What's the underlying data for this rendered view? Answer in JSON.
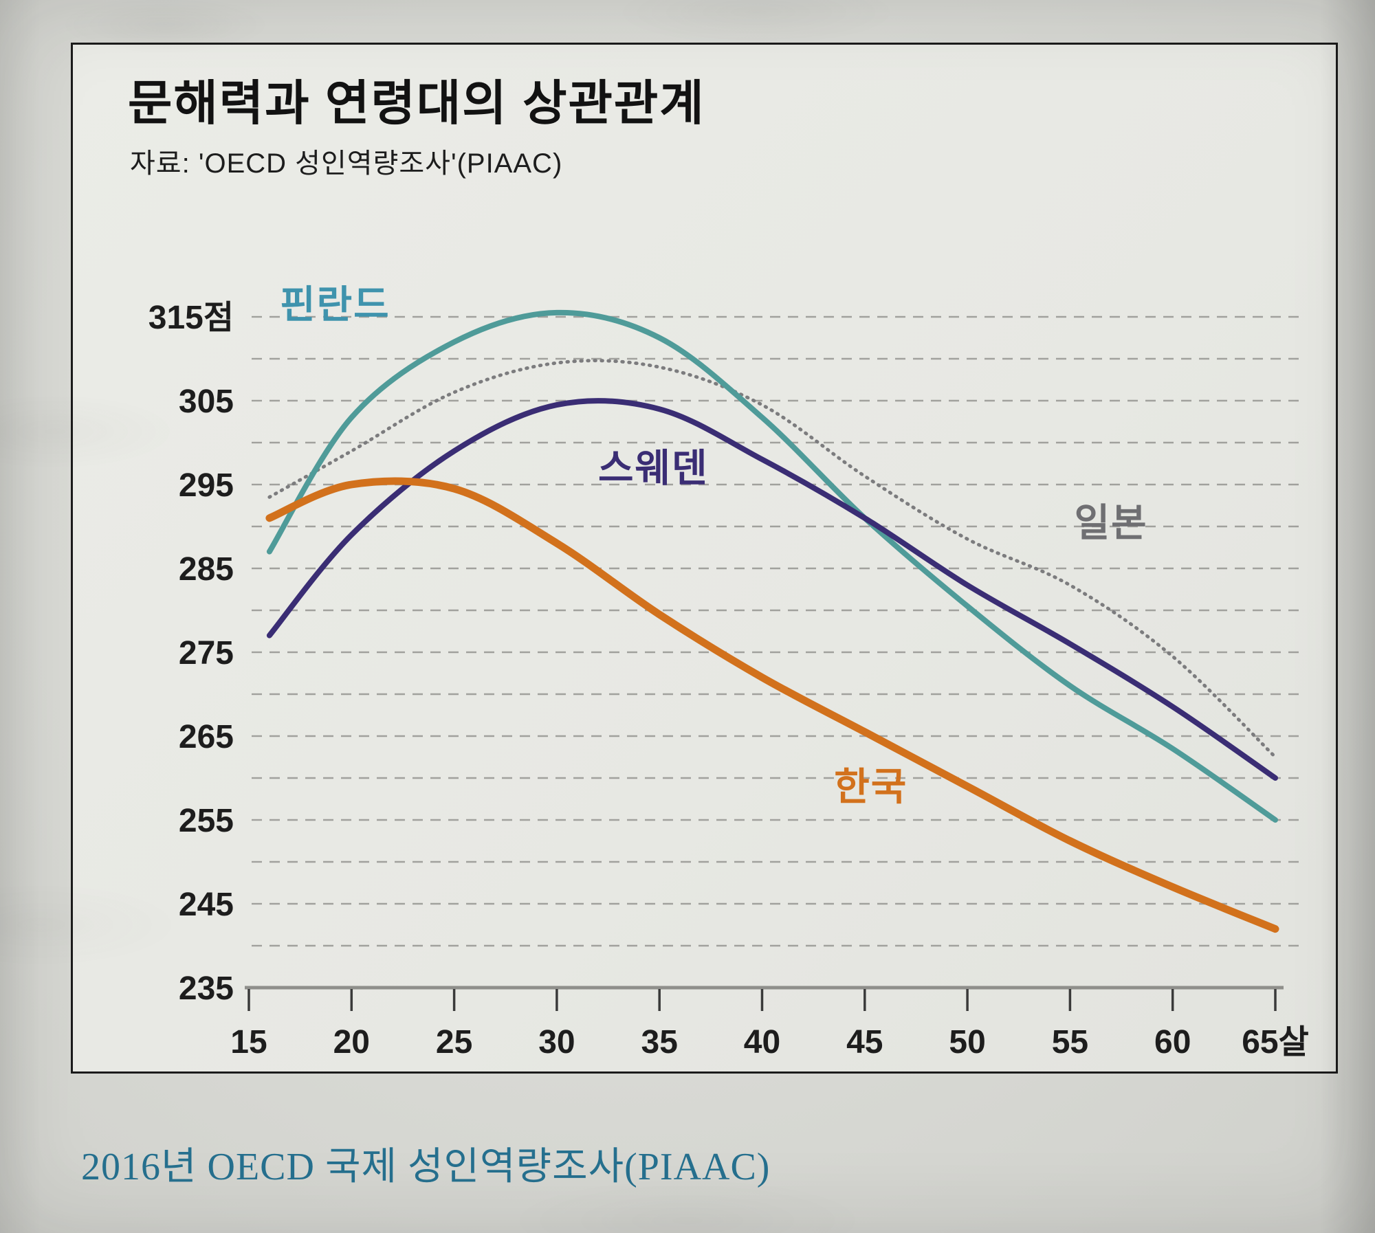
{
  "page": {
    "caption": "2016년 OECD 국제 성인역량조사(PIAAC)"
  },
  "chart_data": {
    "type": "line",
    "title": "문해력과 연령대의 상관관계",
    "source": "자료: 'OECD 성인역량조사'(PIAAC)",
    "x": [
      16,
      20,
      25,
      30,
      35,
      40,
      45,
      50,
      55,
      60,
      65
    ],
    "xlim": [
      15,
      65
    ],
    "ylim": [
      235,
      315
    ],
    "y_unit": "점",
    "x_unit": "살",
    "grid": "dashed-horizontal-every-5",
    "legend_position": "inline-curve-labels",
    "series": [
      {
        "key": "japan",
        "name": "일본",
        "color": "#7c7c7e",
        "label_color": "#6f6f72",
        "style": "dotted",
        "width": 5,
        "values": [
          293.5,
          299,
          306,
          309.5,
          309,
          304.5,
          296,
          288.5,
          283,
          274.5,
          262.5
        ],
        "label_anchor": {
          "age": 57.0,
          "value": 290.5
        }
      },
      {
        "key": "finland",
        "name": "핀란드",
        "color": "#4f9b99",
        "label_color": "#3f93ad",
        "style": "solid",
        "width": 8,
        "values": [
          287,
          303,
          312,
          315.5,
          312.5,
          303,
          291,
          280.5,
          271,
          263.5,
          255
        ],
        "label_anchor": {
          "age": 19.2,
          "value": 316.5
        }
      },
      {
        "key": "sweden",
        "name": "스웨덴",
        "color": "#3a2d74",
        "label_color": "#3a2d74",
        "style": "solid",
        "width": 8,
        "values": [
          277,
          289,
          299,
          304.5,
          304,
          298,
          291,
          283,
          276,
          268.5,
          260
        ],
        "label_anchor": {
          "age": 34.7,
          "value": 297
        }
      },
      {
        "key": "korea",
        "name": "한국",
        "color": "#d2711c",
        "label_color": "#d2711c",
        "style": "solid",
        "width": 11,
        "values": [
          291,
          295,
          294.5,
          288,
          279.5,
          272,
          265.5,
          259,
          252.5,
          247,
          242
        ],
        "label_anchor": {
          "age": 45.3,
          "value": 259
        }
      }
    ],
    "y_ticks": [
      {
        "value": 315,
        "label": "315점"
      },
      {
        "value": 305,
        "label": "305"
      },
      {
        "value": 295,
        "label": "295"
      },
      {
        "value": 285,
        "label": "285"
      },
      {
        "value": 275,
        "label": "275"
      },
      {
        "value": 265,
        "label": "265"
      },
      {
        "value": 255,
        "label": "255"
      },
      {
        "value": 245,
        "label": "245"
      },
      {
        "value": 235,
        "label": "235"
      }
    ],
    "x_ticks": [
      {
        "value": 15,
        "label": "15"
      },
      {
        "value": 20,
        "label": "20"
      },
      {
        "value": 25,
        "label": "25"
      },
      {
        "value": 30,
        "label": "30"
      },
      {
        "value": 35,
        "label": "35"
      },
      {
        "value": 40,
        "label": "40"
      },
      {
        "value": 45,
        "label": "45"
      },
      {
        "value": 50,
        "label": "50"
      },
      {
        "value": 55,
        "label": "55"
      },
      {
        "value": 60,
        "label": "60"
      },
      {
        "value": 65,
        "label": "65살"
      }
    ],
    "colors": {
      "grid": "#9a9a96",
      "axis": "#8f8f8b",
      "tick": "#3a3a3a",
      "tick_label": "#1d1d1d"
    }
  }
}
